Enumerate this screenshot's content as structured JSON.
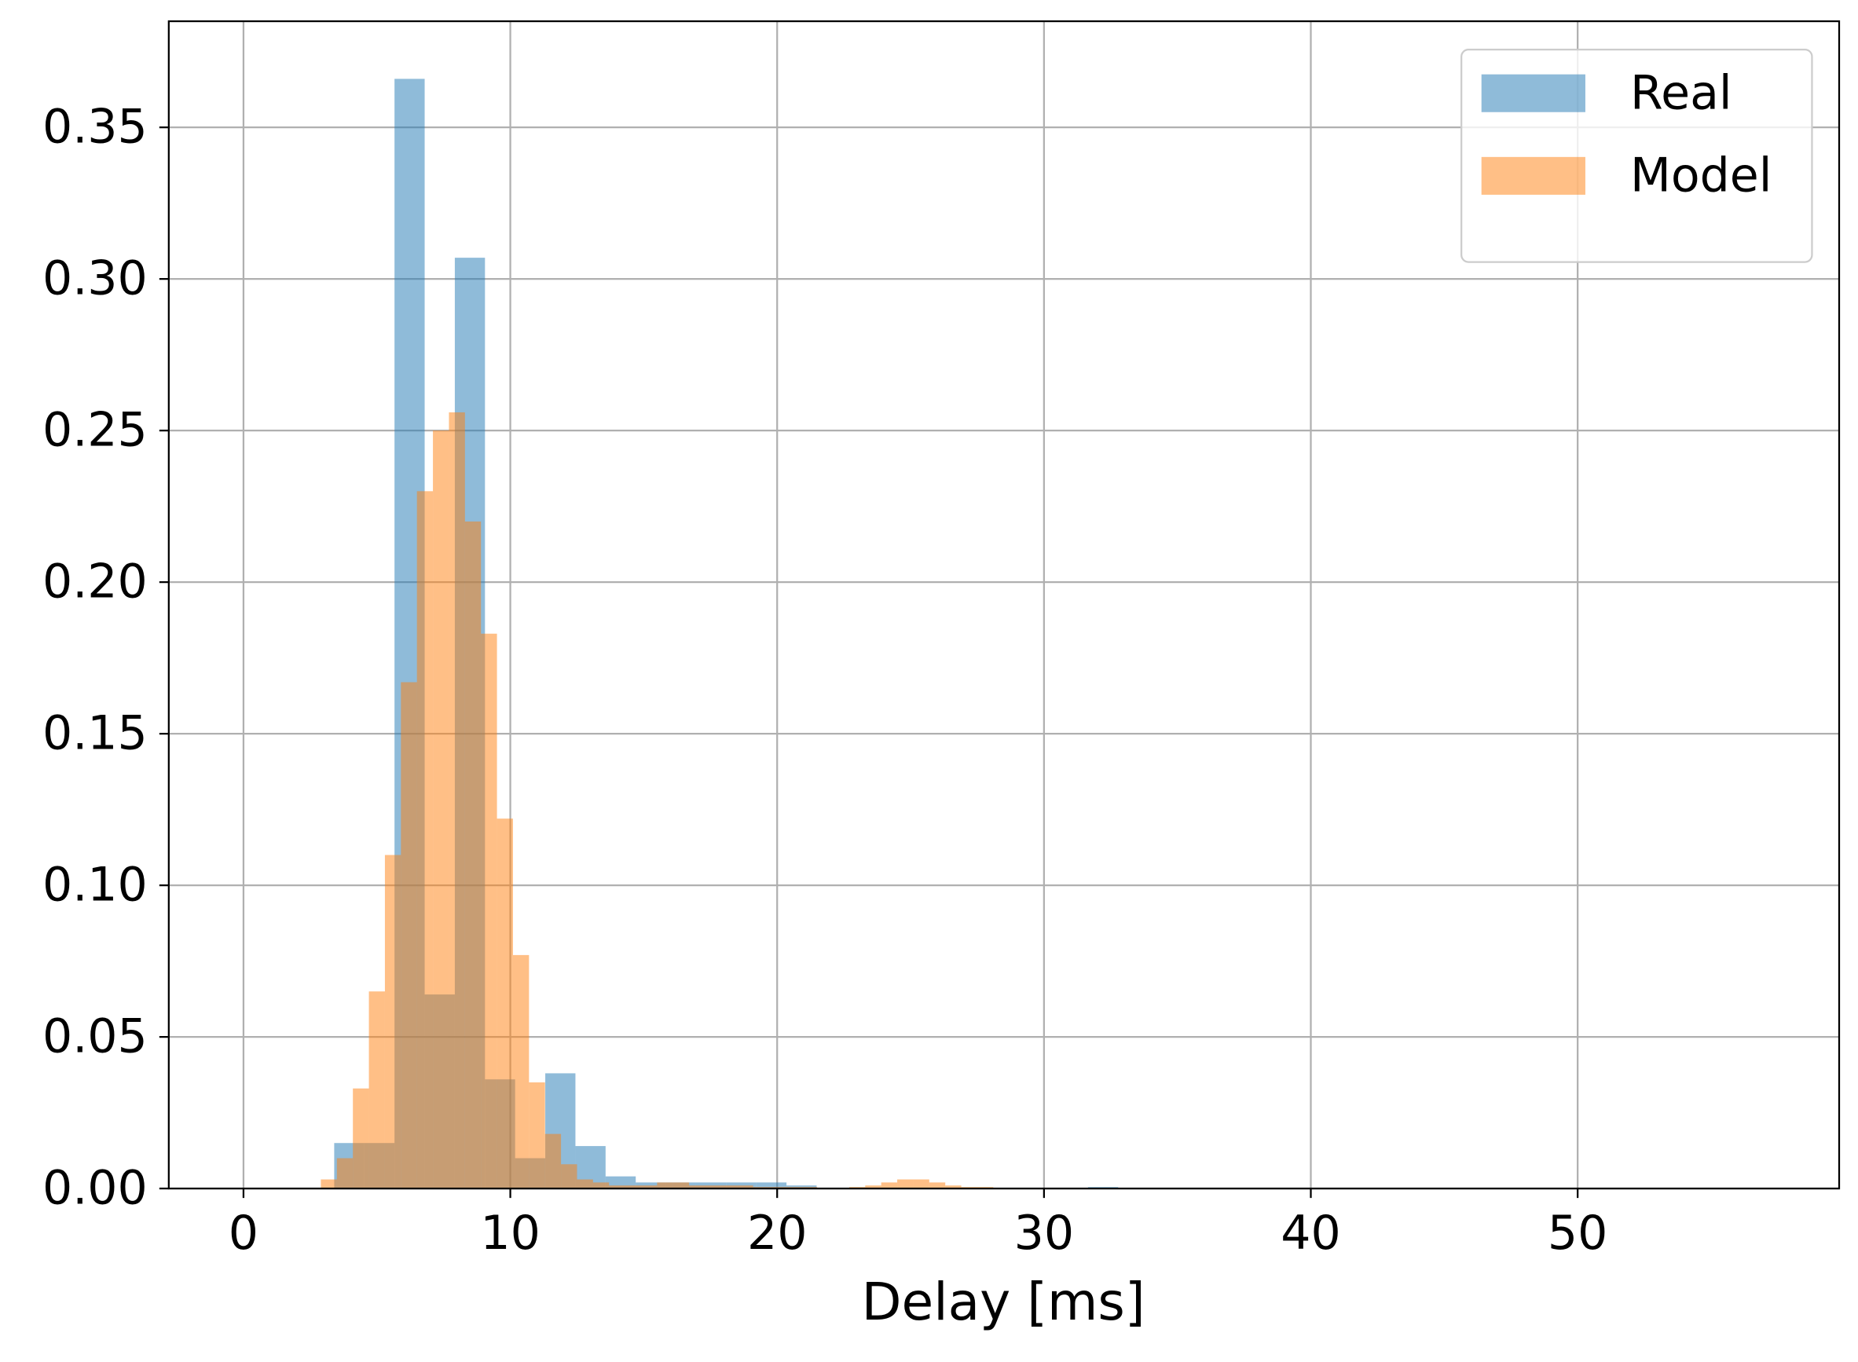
{
  "chart_data": {
    "type": "histogram",
    "x_label": "Delay [ms]",
    "xlim": [
      -2.8,
      59.8
    ],
    "ylim": [
      0,
      0.385
    ],
    "xticks": [
      0,
      10,
      20,
      30,
      40,
      50
    ],
    "yticks": [
      {
        "value": 0,
        "label": "0.00"
      },
      {
        "value": 0.05,
        "label": "0.05"
      },
      {
        "value": 0.1,
        "label": "0.10"
      },
      {
        "value": 0.15,
        "label": "0.15"
      },
      {
        "value": 0.2,
        "label": "0.20"
      },
      {
        "value": 0.25,
        "label": "0.25"
      },
      {
        "value": 0.3,
        "label": "0.30"
      },
      {
        "value": 0.35,
        "label": "0.35"
      }
    ],
    "grid": true,
    "legend": "upper right",
    "alpha": 0.5,
    "series": [
      {
        "name": "Real",
        "color": "#1f77b4",
        "bins": [
          3.4,
          4.53,
          5.66,
          6.79,
          7.92,
          9.05,
          10.18,
          11.31,
          12.44,
          13.57,
          14.7,
          15.83,
          16.96,
          18.09,
          19.22,
          20.35,
          21.48,
          22.61,
          23.74,
          24.87,
          26.0,
          27.13,
          28.26,
          29.39,
          30.52,
          31.65,
          32.78
        ],
        "values": [
          0.015,
          0.015,
          0.366,
          0.064,
          0.307,
          0.036,
          0.01,
          0.038,
          0.014,
          0.004,
          0.002,
          0.002,
          0.002,
          0.002,
          0.002,
          0.001,
          0,
          0,
          0,
          0,
          0,
          0,
          0,
          0,
          0,
          0.0005
        ]
      },
      {
        "name": "Model",
        "color": "#ff7f0e",
        "bins": [
          2.9,
          3.5,
          4.1,
          4.7,
          5.3,
          5.9,
          6.5,
          7.1,
          7.7,
          8.3,
          8.9,
          9.5,
          10.1,
          10.7,
          11.3,
          11.9,
          12.5,
          13.1,
          13.7,
          14.3,
          14.9,
          15.5,
          16.1,
          16.7,
          17.3,
          17.9,
          18.5,
          19.1,
          19.7,
          20.3,
          20.9,
          21.5,
          22.1,
          22.7,
          23.3,
          23.9,
          24.5,
          25.1,
          25.7,
          26.3,
          26.9,
          27.5,
          28.1
        ],
        "values": [
          0.003,
          0.01,
          0.033,
          0.065,
          0.11,
          0.167,
          0.23,
          0.25,
          0.256,
          0.22,
          0.183,
          0.122,
          0.077,
          0.035,
          0.018,
          0.008,
          0.003,
          0.002,
          0.001,
          0.001,
          0.001,
          0.002,
          0.002,
          0.001,
          0.001,
          0.001,
          0.001,
          0.0005,
          0.0005,
          0.0005,
          0.0005,
          0,
          0,
          0.0005,
          0.001,
          0.002,
          0.003,
          0.003,
          0.002,
          0.001,
          0.0005,
          0.0005
        ]
      }
    ]
  }
}
